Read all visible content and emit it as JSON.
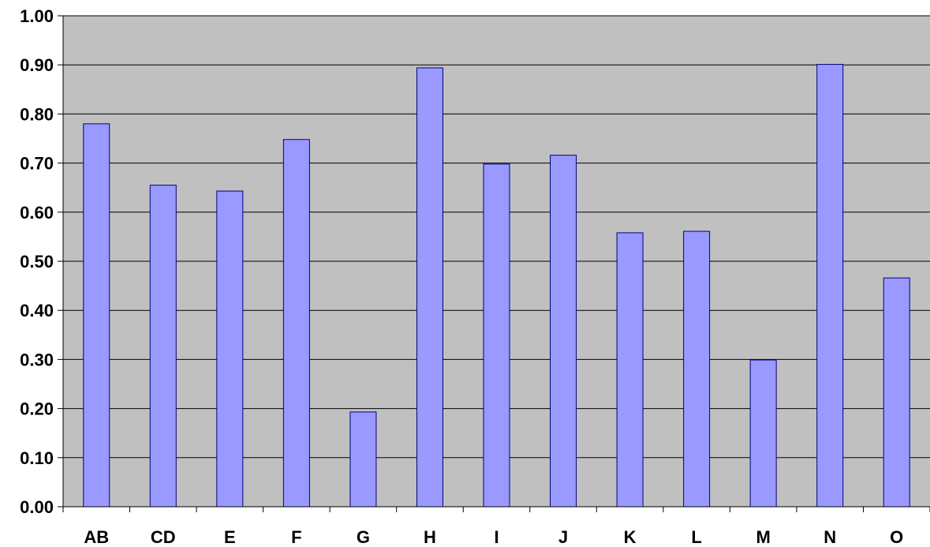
{
  "chart_data": {
    "type": "bar",
    "categories": [
      "AB",
      "CD",
      "E",
      "F",
      "G",
      "H",
      "I",
      "J",
      "K",
      "L",
      "M",
      "N",
      "O"
    ],
    "values": [
      0.78,
      0.655,
      0.643,
      0.748,
      0.193,
      0.894,
      0.698,
      0.716,
      0.558,
      0.561,
      0.299,
      0.901,
      0.466
    ],
    "yticks": [
      "0.00",
      "0.10",
      "0.20",
      "0.30",
      "0.40",
      "0.50",
      "0.60",
      "0.70",
      "0.80",
      "0.90",
      "1.00"
    ],
    "ylim": [
      0,
      1
    ],
    "grid": true,
    "legend": "none",
    "title": "",
    "xlabel": "",
    "ylabel": "",
    "colors": {
      "bar_fill": "#9999ff",
      "bar_stroke": "#000080",
      "plot_bg": "#c0c0c0",
      "gridline": "#000000",
      "axis": "#000000"
    }
  }
}
